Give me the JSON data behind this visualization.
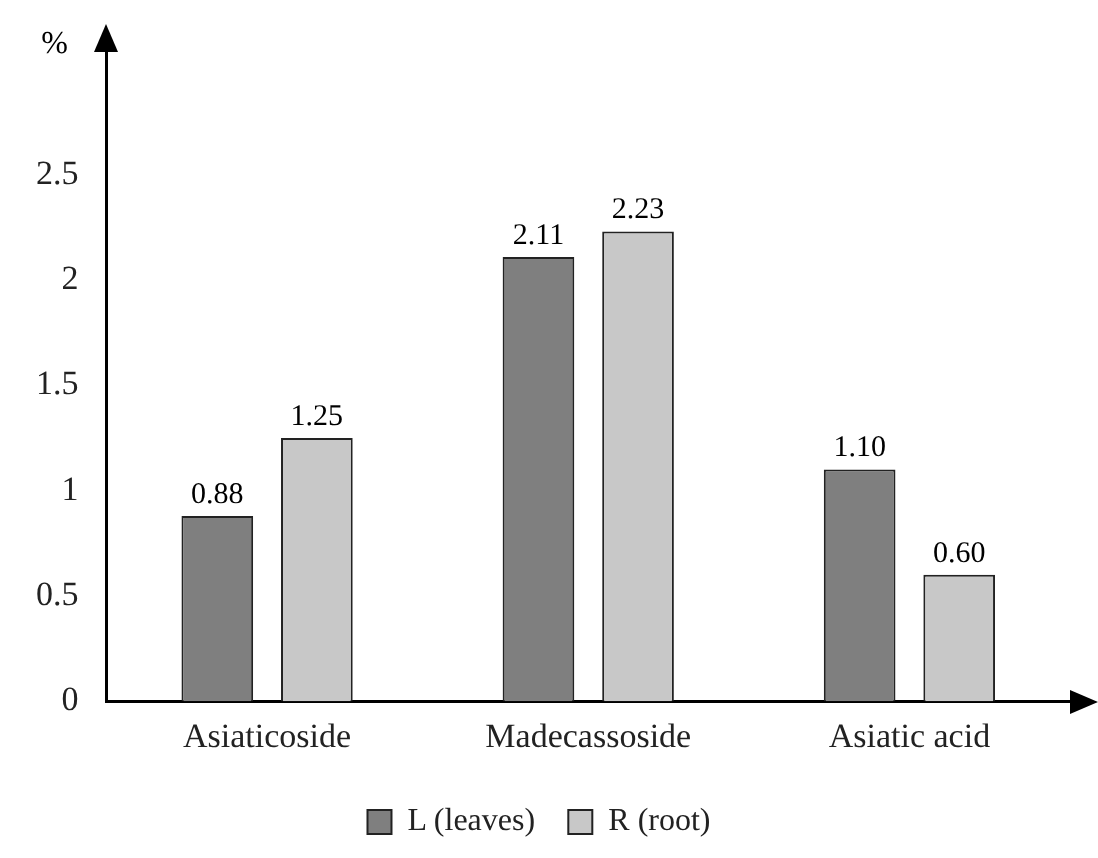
{
  "chart_data": {
    "type": "bar",
    "ylabel": "%",
    "categories": [
      "Asiaticoside",
      "Madecassoside",
      "Asiatic acid"
    ],
    "series": [
      {
        "name": "L (leaves)",
        "color": "#7f7f7f",
        "values": [
          0.88,
          2.11,
          1.1
        ],
        "value_labels": [
          "0.88",
          "2.11",
          "1.10"
        ]
      },
      {
        "name": "R (root)",
        "color": "#c8c8c8",
        "values": [
          1.25,
          2.23,
          0.6
        ],
        "value_labels": [
          "1.25",
          "2.23",
          "0.60"
        ]
      }
    ],
    "ylim": [
      0,
      3.1
    ],
    "yticks": [
      0,
      0.5,
      1,
      1.5,
      2,
      2.5
    ],
    "grid": false,
    "legend": "bottom"
  }
}
